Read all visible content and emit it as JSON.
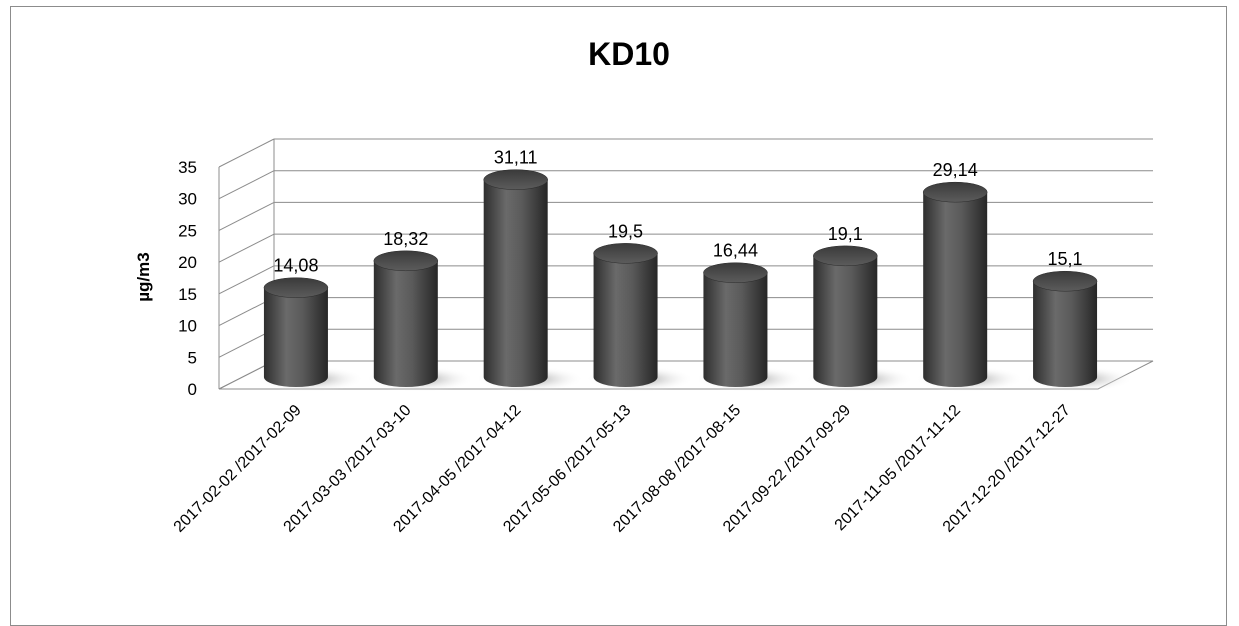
{
  "chart_data": {
    "type": "bar",
    "style": "3d-cylinder",
    "title": "KD10",
    "xlabel": "",
    "ylabel": "µg/m3",
    "ylim": [
      0,
      35
    ],
    "yticks": [
      "0",
      "5",
      "10",
      "15",
      "20",
      "25",
      "30",
      "35"
    ],
    "grid": true,
    "legend": "none",
    "bar_color": "#505050",
    "categories": [
      "2017-02-02 /2017-02-09",
      "2017-03-03 /2017-03-10",
      "2017-04-05 /2017-04-12",
      "2017-05-06 /2017-05-13",
      "2017-08-08 /2017-08-15",
      "2017-09-22 /2017-09-29",
      "2017-11-05 /2017-11-12",
      "2017-12-20 /2017-12-27"
    ],
    "values": [
      14.08,
      18.32,
      31.11,
      19.5,
      16.44,
      19.1,
      29.14,
      15.1
    ],
    "data_labels": [
      "14,08",
      "18,32",
      "31,11",
      "19,5",
      "16,44",
      "19,1",
      "29,14",
      "15,1"
    ]
  }
}
